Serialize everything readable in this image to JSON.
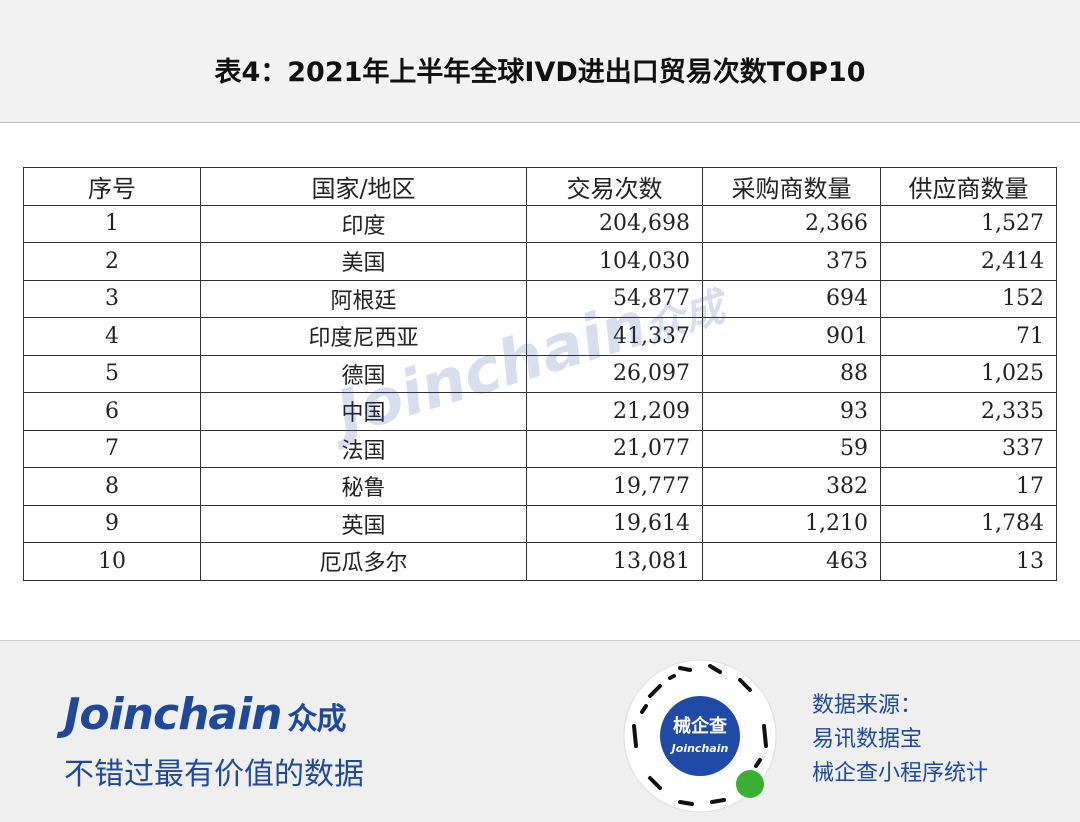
{
  "header": {
    "title": "表4：2021年上半年全球IVD进出口贸易次数TOP10"
  },
  "table": {
    "columns": [
      "序号",
      "国家/地区",
      "交易次数",
      "采购商数量",
      "供应商数量"
    ],
    "rows": [
      [
        "1",
        "印度",
        "204,698",
        "2,366",
        "1,527"
      ],
      [
        "2",
        "美国",
        "104,030",
        "375",
        "2,414"
      ],
      [
        "3",
        "阿根廷",
        "54,877",
        "694",
        "152"
      ],
      [
        "4",
        "印度尼西亚",
        "41,337",
        "901",
        "71"
      ],
      [
        "5",
        "德国",
        "26,097",
        "88",
        "1,025"
      ],
      [
        "6",
        "中国",
        "21,209",
        "93",
        "2,335"
      ],
      [
        "7",
        "法国",
        "21,077",
        "59",
        "337"
      ],
      [
        "8",
        "秘鲁",
        "19,777",
        "382",
        "17"
      ],
      [
        "9",
        "英国",
        "19,614",
        "1,210",
        "1,784"
      ],
      [
        "10",
        "厄瓜多尔",
        "13,081",
        "463",
        "13"
      ]
    ]
  },
  "watermark": {
    "brand": "Joinchain",
    "brand_cn": "众成"
  },
  "footer": {
    "brand": "Joinchain",
    "brand_cn": "众成",
    "slogan": "不错过最有价值的数据",
    "qr_title": "械企查",
    "qr_brand": "Joinchain",
    "source_lines": [
      "数据来源：",
      "易讯数据宝",
      "械企查小程序统计"
    ]
  }
}
